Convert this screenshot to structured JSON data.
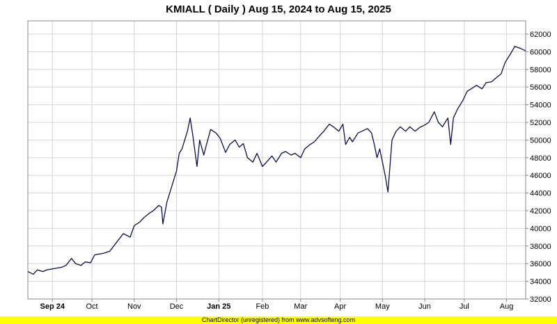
{
  "colors": {
    "line": "#0d0d45",
    "grid": "#d4d4d4",
    "border": "#888888",
    "footer_bg": "#ffff00"
  },
  "footer_text": "ChartDirector (unregistered) from www.advsofteng.com",
  "chart_data": {
    "type": "line",
    "title": "KMIALL ( Daily ) Aug 15, 2024 to Aug 15, 2025",
    "xlabel": "",
    "ylabel": "",
    "ylim": [
      32000,
      63500
    ],
    "y_axis_side": "right",
    "y_ticks": [
      32000,
      34000,
      36000,
      38000,
      40000,
      42000,
      44000,
      46000,
      48000,
      50000,
      52000,
      54000,
      56000,
      58000,
      60000,
      62000
    ],
    "grid": true,
    "x_ticks": [
      {
        "label": "Sep 24",
        "date": "2024-09-02",
        "bold": true
      },
      {
        "label": "Oct",
        "date": "2024-10-01",
        "bold": false
      },
      {
        "label": "Nov",
        "date": "2024-11-01",
        "bold": false
      },
      {
        "label": "Dec",
        "date": "2024-12-02",
        "bold": false
      },
      {
        "label": "Jan 25",
        "date": "2025-01-02",
        "bold": true
      },
      {
        "label": "Feb",
        "date": "2025-02-03",
        "bold": false
      },
      {
        "label": "Mar",
        "date": "2025-03-03",
        "bold": false
      },
      {
        "label": "Apr",
        "date": "2025-04-01",
        "bold": false
      },
      {
        "label": "May",
        "date": "2025-05-02",
        "bold": false
      },
      {
        "label": "Jun",
        "date": "2025-06-02",
        "bold": false
      },
      {
        "label": "Jul",
        "date": "2025-07-01",
        "bold": false
      },
      {
        "label": "Aug",
        "date": "2025-08-01",
        "bold": false
      }
    ],
    "series": [
      {
        "name": "",
        "points": [
          [
            "2024-08-15",
            35100
          ],
          [
            "2024-08-19",
            34800
          ],
          [
            "2024-08-22",
            35300
          ],
          [
            "2024-08-26",
            35100
          ],
          [
            "2024-08-29",
            35300
          ],
          [
            "2024-09-02",
            35400
          ],
          [
            "2024-09-05",
            35500
          ],
          [
            "2024-09-09",
            35600
          ],
          [
            "2024-09-12",
            35800
          ],
          [
            "2024-09-16",
            36600
          ],
          [
            "2024-09-19",
            36000
          ],
          [
            "2024-09-23",
            35800
          ],
          [
            "2024-09-26",
            36200
          ],
          [
            "2024-09-30",
            36100
          ],
          [
            "2024-10-03",
            37000
          ],
          [
            "2024-10-07",
            37100
          ],
          [
            "2024-10-10",
            37200
          ],
          [
            "2024-10-14",
            37400
          ],
          [
            "2024-10-17",
            38000
          ],
          [
            "2024-10-21",
            38800
          ],
          [
            "2024-10-24",
            39400
          ],
          [
            "2024-10-29",
            39000
          ],
          [
            "2024-11-01",
            40300
          ],
          [
            "2024-11-05",
            40700
          ],
          [
            "2024-11-08",
            41200
          ],
          [
            "2024-11-12",
            41700
          ],
          [
            "2024-11-15",
            42000
          ],
          [
            "2024-11-19",
            42600
          ],
          [
            "2024-11-21",
            42400
          ],
          [
            "2024-11-22",
            40500
          ],
          [
            "2024-11-25",
            43000
          ],
          [
            "2024-11-28",
            44500
          ],
          [
            "2024-12-02",
            46500
          ],
          [
            "2024-12-04",
            48500
          ],
          [
            "2024-12-06",
            49000
          ],
          [
            "2024-12-10",
            51000
          ],
          [
            "2024-12-12",
            52500
          ],
          [
            "2024-12-14",
            50500
          ],
          [
            "2024-12-17",
            47000
          ],
          [
            "2024-12-19",
            50000
          ],
          [
            "2024-12-22",
            48300
          ],
          [
            "2024-12-24",
            49500
          ],
          [
            "2024-12-27",
            51200
          ],
          [
            "2024-12-31",
            50800
          ],
          [
            "2025-01-03",
            50200
          ],
          [
            "2025-01-07",
            48600
          ],
          [
            "2025-01-10",
            49500
          ],
          [
            "2025-01-14",
            50000
          ],
          [
            "2025-01-17",
            49200
          ],
          [
            "2025-01-20",
            49600
          ],
          [
            "2025-01-23",
            48000
          ],
          [
            "2025-01-27",
            47500
          ],
          [
            "2025-01-30",
            48500
          ],
          [
            "2025-02-03",
            47000
          ],
          [
            "2025-02-06",
            47500
          ],
          [
            "2025-02-10",
            48200
          ],
          [
            "2025-02-13",
            47500
          ],
          [
            "2025-02-17",
            48500
          ],
          [
            "2025-02-20",
            48700
          ],
          [
            "2025-02-24",
            48300
          ],
          [
            "2025-02-27",
            48500
          ],
          [
            "2025-03-03",
            48000
          ],
          [
            "2025-03-06",
            49000
          ],
          [
            "2025-03-10",
            49500
          ],
          [
            "2025-03-13",
            49800
          ],
          [
            "2025-03-17",
            50500
          ],
          [
            "2025-03-20",
            51000
          ],
          [
            "2025-03-24",
            51800
          ],
          [
            "2025-03-27",
            51500
          ],
          [
            "2025-03-31",
            51000
          ],
          [
            "2025-04-03",
            51800
          ],
          [
            "2025-04-05",
            49500
          ],
          [
            "2025-04-08",
            50300
          ],
          [
            "2025-04-10",
            49800
          ],
          [
            "2025-04-14",
            50800
          ],
          [
            "2025-04-17",
            51000
          ],
          [
            "2025-04-21",
            51300
          ],
          [
            "2025-04-24",
            50800
          ],
          [
            "2025-04-26",
            49500
          ],
          [
            "2025-04-28",
            48000
          ],
          [
            "2025-04-30",
            49000
          ],
          [
            "2025-05-04",
            46000
          ],
          [
            "2025-05-06",
            44100
          ],
          [
            "2025-05-09",
            50000
          ],
          [
            "2025-05-12",
            51000
          ],
          [
            "2025-05-15",
            51500
          ],
          [
            "2025-05-19",
            51000
          ],
          [
            "2025-05-22",
            51500
          ],
          [
            "2025-05-26",
            51000
          ],
          [
            "2025-05-29",
            51400
          ],
          [
            "2025-06-02",
            51700
          ],
          [
            "2025-06-05",
            52000
          ],
          [
            "2025-06-09",
            53200
          ],
          [
            "2025-06-12",
            52000
          ],
          [
            "2025-06-15",
            51500
          ],
          [
            "2025-06-19",
            52500
          ],
          [
            "2025-06-21",
            49500
          ],
          [
            "2025-06-23",
            52500
          ],
          [
            "2025-06-26",
            53500
          ],
          [
            "2025-06-30",
            54500
          ],
          [
            "2025-07-03",
            55500
          ],
          [
            "2025-07-07",
            55900
          ],
          [
            "2025-07-10",
            56200
          ],
          [
            "2025-07-14",
            55800
          ],
          [
            "2025-07-17",
            56500
          ],
          [
            "2025-07-21",
            56600
          ],
          [
            "2025-07-24",
            57000
          ],
          [
            "2025-07-28",
            57500
          ],
          [
            "2025-07-31",
            58800
          ],
          [
            "2025-08-04",
            59800
          ],
          [
            "2025-08-07",
            60600
          ],
          [
            "2025-08-11",
            60400
          ],
          [
            "2025-08-15",
            60100
          ]
        ]
      }
    ]
  }
}
